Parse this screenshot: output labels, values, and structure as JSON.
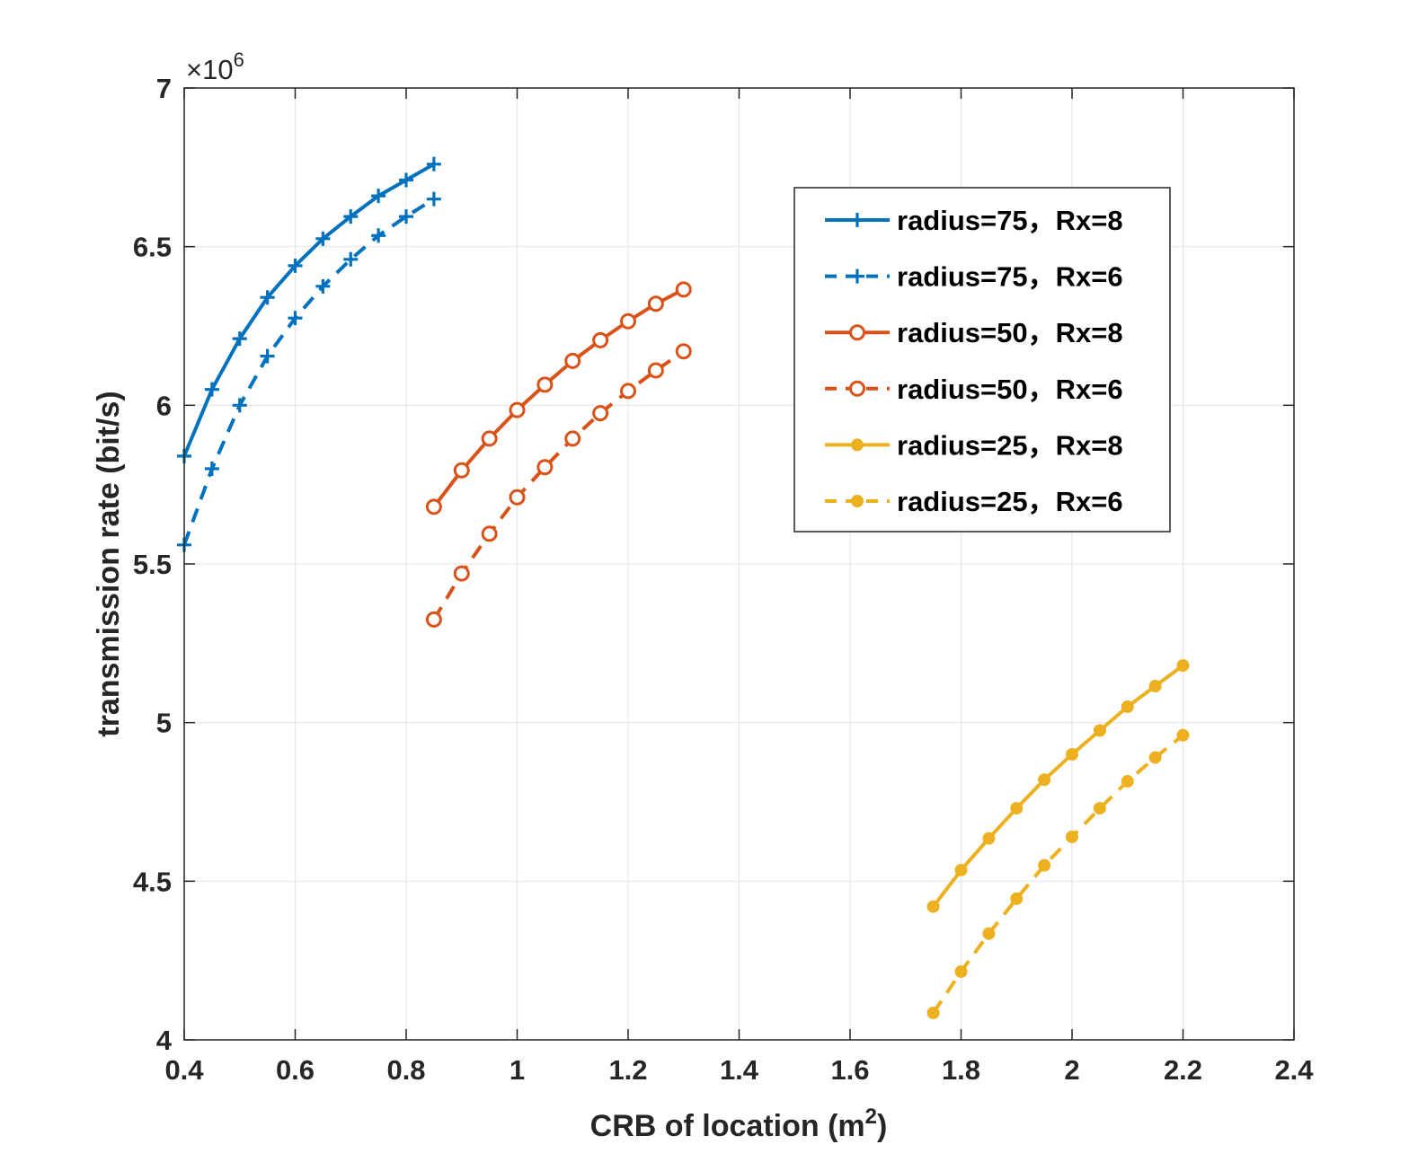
{
  "chart_data": {
    "type": "line",
    "title": "",
    "xlabel_main": "CRB of location (m",
    "xlabel_sup": "2",
    "xlabel_close": ")",
    "ylabel": "transmission rate (bit/s)",
    "y_multiplier_prefix": "×10",
    "y_multiplier_exp": "6",
    "xlim": [
      0.4,
      2.4
    ],
    "ylim": [
      4,
      7
    ],
    "xticks": [
      "0.4",
      "0.6",
      "0.8",
      "1",
      "1.2",
      "1.4",
      "1.6",
      "1.8",
      "2",
      "2.2",
      "2.4"
    ],
    "yticks": [
      "4",
      "4.5",
      "5",
      "5.5",
      "6",
      "6.5",
      "7"
    ],
    "grid": true,
    "legend_position": "top-right",
    "series": [
      {
        "name": "radius=75，Rx=8",
        "color": "#0072BD",
        "line": "solid",
        "marker": "plus",
        "x": [
          0.4,
          0.45,
          0.5,
          0.55,
          0.6,
          0.65,
          0.7,
          0.75,
          0.8,
          0.85
        ],
        "y": [
          5.84,
          6.05,
          6.21,
          6.34,
          6.44,
          6.525,
          6.595,
          6.66,
          6.71,
          6.76
        ]
      },
      {
        "name": "radius=75，Rx=6",
        "color": "#0072BD",
        "line": "dashed",
        "marker": "plus",
        "x": [
          0.4,
          0.45,
          0.5,
          0.55,
          0.6,
          0.65,
          0.7,
          0.75,
          0.8,
          0.85
        ],
        "y": [
          5.56,
          5.8,
          6.0,
          6.155,
          6.275,
          6.375,
          6.46,
          6.535,
          6.595,
          6.65
        ]
      },
      {
        "name": "radius=50，Rx=8",
        "color": "#D95319",
        "line": "solid",
        "marker": "circle",
        "x": [
          0.85,
          0.9,
          0.95,
          1.0,
          1.05,
          1.1,
          1.15,
          1.2,
          1.25,
          1.3
        ],
        "y": [
          5.68,
          5.795,
          5.895,
          5.985,
          6.065,
          6.14,
          6.205,
          6.265,
          6.32,
          6.365
        ]
      },
      {
        "name": "radius=50，Rx=6",
        "color": "#D95319",
        "line": "dashed",
        "marker": "circle",
        "x": [
          0.85,
          0.9,
          0.95,
          1.0,
          1.05,
          1.1,
          1.15,
          1.2,
          1.25,
          1.3
        ],
        "y": [
          5.325,
          5.47,
          5.595,
          5.71,
          5.805,
          5.895,
          5.975,
          6.045,
          6.11,
          6.17
        ]
      },
      {
        "name": "radius=25，Rx=8",
        "color": "#EDB120",
        "line": "solid",
        "marker": "dot",
        "x": [
          1.75,
          1.8,
          1.85,
          1.9,
          1.95,
          2.0,
          2.05,
          2.1,
          2.15,
          2.2
        ],
        "y": [
          4.42,
          4.535,
          4.635,
          4.73,
          4.82,
          4.9,
          4.975,
          5.05,
          5.115,
          5.18
        ]
      },
      {
        "name": "radius=25，Rx=6",
        "color": "#EDB120",
        "line": "dashed",
        "marker": "dot",
        "x": [
          1.75,
          1.8,
          1.85,
          1.9,
          1.95,
          2.0,
          2.05,
          2.1,
          2.15,
          2.2
        ],
        "y": [
          4.085,
          4.215,
          4.335,
          4.445,
          4.55,
          4.64,
          4.73,
          4.815,
          4.89,
          4.96
        ]
      }
    ]
  }
}
